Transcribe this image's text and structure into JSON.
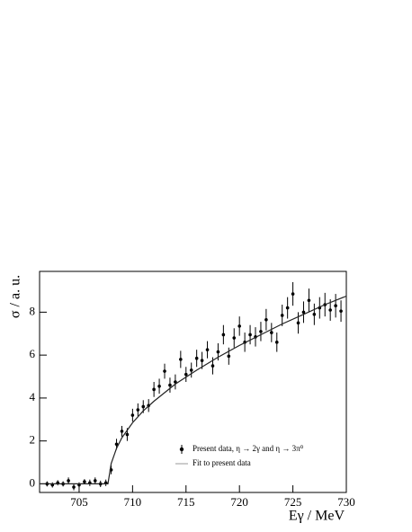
{
  "chart_data": {
    "type": "scatter",
    "xlabel": "Eγ / MeV",
    "ylabel": "σ / a. u.",
    "xlim": [
      701.3,
      730
    ],
    "ylim": [
      -0.4,
      9.9
    ],
    "xticks": [
      705,
      710,
      715,
      720,
      725,
      730
    ],
    "yticks": [
      0,
      2,
      4,
      6,
      8
    ],
    "legend": "lower right",
    "series": [
      {
        "name": "Present data, η → 2γ and η → 3π⁰",
        "color": "#000000",
        "kind": "points",
        "x": [
          702.0,
          702.5,
          703.0,
          703.5,
          704.0,
          704.5,
          705.0,
          705.5,
          706.0,
          706.5,
          707.0,
          707.5,
          708.0,
          708.5,
          709.0,
          709.5,
          710.0,
          710.5,
          711.0,
          711.5,
          712.0,
          712.5,
          713.0,
          713.5,
          714.0,
          714.5,
          715.0,
          715.5,
          716.0,
          716.5,
          717.0,
          717.5,
          718.0,
          718.5,
          719.0,
          719.5,
          720.0,
          720.5,
          721.0,
          721.5,
          722.0,
          722.5,
          723.0,
          723.5,
          724.0,
          724.5,
          725.0,
          725.5,
          726.0,
          726.5,
          727.0,
          727.5,
          728.0,
          728.5,
          729.0,
          729.5
        ],
        "values": [
          0.0,
          -0.05,
          0.05,
          0.0,
          0.15,
          -0.15,
          -0.05,
          0.1,
          0.05,
          0.15,
          0.0,
          0.05,
          0.65,
          1.85,
          2.45,
          2.3,
          3.2,
          3.45,
          3.6,
          3.65,
          4.4,
          4.55,
          5.25,
          4.6,
          4.75,
          5.8,
          5.1,
          5.3,
          5.85,
          5.75,
          6.25,
          5.5,
          6.15,
          6.95,
          5.95,
          6.8,
          7.35,
          6.6,
          6.95,
          6.85,
          7.1,
          7.65,
          7.05,
          6.6,
          7.85,
          8.2,
          8.85,
          7.5,
          8.0,
          8.55,
          7.9,
          8.2,
          8.35,
          8.1,
          8.3,
          8.05
        ],
        "errors": [
          0.12,
          0.12,
          0.12,
          0.12,
          0.15,
          0.15,
          0.12,
          0.12,
          0.15,
          0.15,
          0.15,
          0.15,
          0.2,
          0.25,
          0.25,
          0.3,
          0.3,
          0.3,
          0.3,
          0.3,
          0.35,
          0.35,
          0.35,
          0.35,
          0.35,
          0.4,
          0.35,
          0.35,
          0.4,
          0.4,
          0.4,
          0.4,
          0.4,
          0.45,
          0.4,
          0.45,
          0.45,
          0.45,
          0.45,
          0.45,
          0.45,
          0.5,
          0.45,
          0.45,
          0.5,
          0.5,
          0.55,
          0.5,
          0.5,
          0.55,
          0.5,
          0.5,
          0.55,
          0.5,
          0.55,
          0.5
        ]
      },
      {
        "name": "Fit to present data",
        "color": "#222222",
        "kind": "line",
        "x": [
          701.3,
          707.7,
          708.0,
          708.5,
          709.0,
          710.0,
          711.0,
          712.0,
          714.0,
          716.0,
          718.0,
          720.0,
          722.0,
          724.0,
          726.0,
          728.0,
          730.0
        ],
        "values": [
          0,
          0,
          0.95,
          1.65,
          2.15,
          2.85,
          3.4,
          3.85,
          4.65,
          5.3,
          5.9,
          6.45,
          6.95,
          7.45,
          7.9,
          8.35,
          8.75
        ]
      }
    ]
  }
}
